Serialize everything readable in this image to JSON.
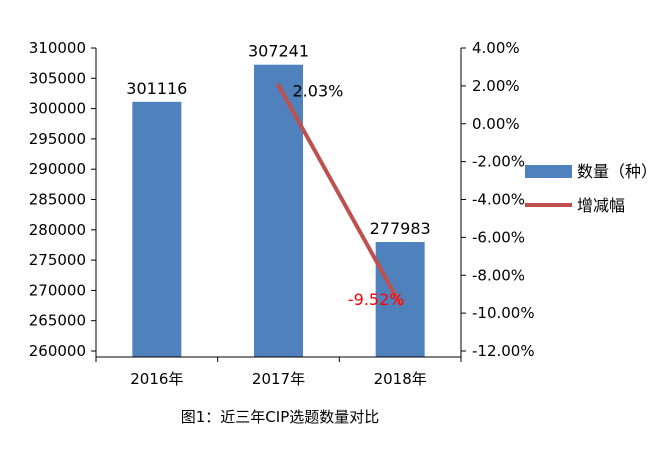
{
  "chart_data": {
    "type": "bar",
    "categories": [
      "2016年",
      "2017年",
      "2018年"
    ],
    "series": [
      {
        "name": "数量（种）",
        "type": "bar",
        "axis": "left",
        "color": "#4F81BD",
        "values": [
          301116,
          307241,
          277983
        ],
        "labels": [
          "301116",
          "307241",
          "277983"
        ]
      },
      {
        "name": "增减幅",
        "type": "line",
        "axis": "right",
        "color": "#C0504D",
        "values": [
          null,
          2.03,
          -9.52
        ],
        "labels": [
          "",
          "2.03%",
          "-9.52%"
        ],
        "label_colors": [
          "#000000",
          "#000000",
          "#FF0000"
        ]
      }
    ],
    "y_left": {
      "range": [
        260000,
        310000
      ],
      "ticks": [
        260000,
        265000,
        270000,
        275000,
        280000,
        285000,
        290000,
        295000,
        300000,
        305000,
        310000
      ],
      "tick_labels": [
        "260000",
        "265000",
        "270000",
        "275000",
        "280000",
        "285000",
        "290000",
        "295000",
        "300000",
        "305000",
        "310000"
      ]
    },
    "y_right": {
      "range": [
        -12,
        4
      ],
      "ticks": [
        -12,
        -10,
        -8,
        -6,
        -4,
        -2,
        0,
        2,
        4
      ],
      "tick_labels": [
        "-12.00%",
        "-10.00%",
        "-8.00%",
        "-6.00%",
        "-4.00%",
        "-2.00%",
        "0.00%",
        "2.00%",
        "4.00%"
      ]
    },
    "legend_position": "right",
    "grid": false
  },
  "caption": "图1：近三年CIP选题数量对比"
}
